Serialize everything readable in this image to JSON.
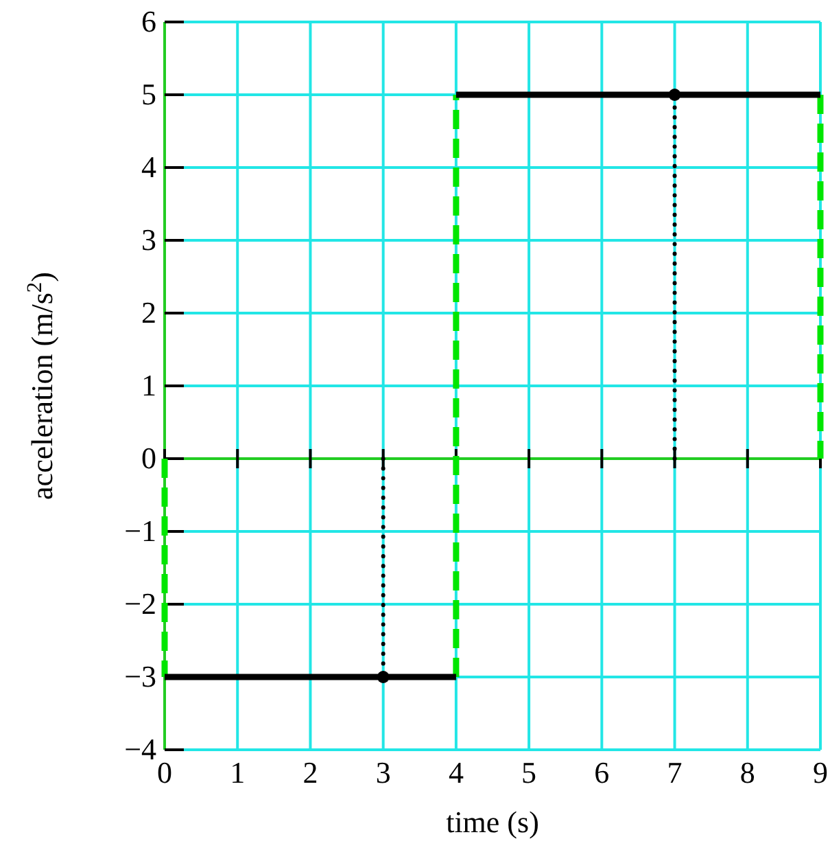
{
  "chart_data": {
    "type": "line",
    "xlabel": "time (s)",
    "ylabel": "acceleration (m/s$^{2}$)",
    "xlim": [
      0,
      9
    ],
    "xticks": [
      0,
      1,
      2,
      3,
      4,
      5,
      6,
      7,
      8,
      9
    ],
    "ylim": [
      -4,
      6
    ],
    "yticks": [
      {
        "value": -4,
        "label": "−4"
      },
      {
        "value": -3,
        "label": "−3"
      },
      {
        "value": -2,
        "label": "−2"
      },
      {
        "value": -1,
        "label": "−1"
      },
      0,
      1,
      2,
      3,
      4,
      5,
      6
    ],
    "grid": true,
    "ref_lines": [
      {
        "axis": "y",
        "value": 0,
        "color": "#22cc22"
      }
    ],
    "series": [
      {
        "color": "#00e600",
        "line_style": "dashed",
        "x": [
          0,
          0
        ],
        "values": [
          0,
          -3
        ]
      },
      {
        "color": "#00e600",
        "line_style": "dashed",
        "x": [
          4,
          4
        ],
        "values": [
          -3,
          5
        ]
      },
      {
        "color": "#00e600",
        "line_style": "dashed",
        "x": [
          9,
          9
        ],
        "values": [
          5,
          0
        ]
      },
      {
        "color": "#000000",
        "line_style": "dotted",
        "x": [
          3,
          3
        ],
        "values": [
          0,
          -3
        ]
      },
      {
        "color": "#000000",
        "line_style": "dotted",
        "x": [
          7,
          7
        ],
        "values": [
          0,
          5
        ]
      },
      {
        "color": "#000000",
        "line_style": "solid",
        "x": [
          0,
          4
        ],
        "values": [
          -3,
          -3
        ]
      },
      {
        "color": "#000000",
        "line_style": "solid",
        "x": [
          4,
          9
        ],
        "values": [
          5,
          5
        ]
      },
      {
        "type": "scatter",
        "color": "#000000",
        "marker": "circle",
        "x": [
          3,
          7
        ],
        "values": [
          -3,
          5
        ]
      }
    ]
  }
}
